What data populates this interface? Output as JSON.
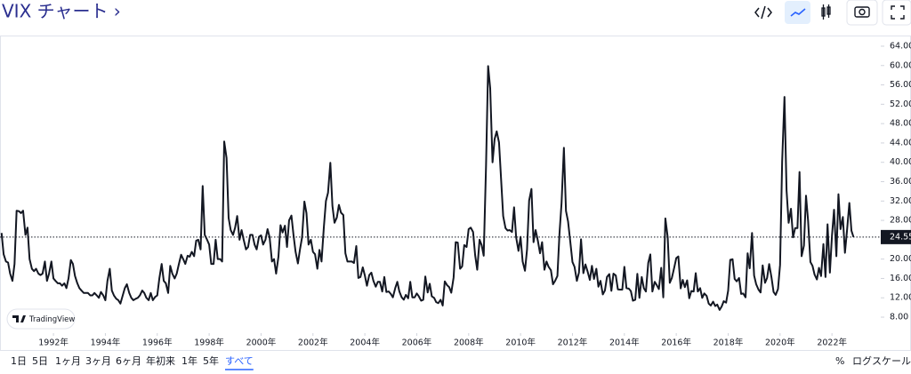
{
  "toolbar": {
    "title": "VIX チャート ›"
  },
  "watermark": "TradingView",
  "range_buttons": [
    "1日",
    "5日",
    "1ヶ月",
    "3ヶ月",
    "6ヶ月",
    "年初来",
    "1年",
    "5年",
    "すべて"
  ],
  "active_range": 8,
  "scale_buttons": [
    "%",
    "ログスケール"
  ],
  "chart_data": {
    "type": "line",
    "xlim": [
      1989.94,
      2023.88
    ],
    "ylim": [
      4.7,
      66.2
    ],
    "xticks": [
      {
        "value": 1992,
        "label": "1992年"
      },
      {
        "value": 1994,
        "label": "1994年"
      },
      {
        "value": 1996,
        "label": "1996年"
      },
      {
        "value": 1998,
        "label": "1998年"
      },
      {
        "value": 2000,
        "label": "2000年"
      },
      {
        "value": 2002,
        "label": "2002年"
      },
      {
        "value": 2004,
        "label": "2004年"
      },
      {
        "value": 2006,
        "label": "2006年"
      },
      {
        "value": 2008,
        "label": "2008年"
      },
      {
        "value": 2010,
        "label": "2010年"
      },
      {
        "value": 2012,
        "label": "2012年"
      },
      {
        "value": 2014,
        "label": "2014年"
      },
      {
        "value": 2016,
        "label": "2016年"
      },
      {
        "value": 2018,
        "label": "2018年"
      },
      {
        "value": 2020,
        "label": "2020年"
      },
      {
        "value": 2022,
        "label": "2022年"
      }
    ],
    "yticks": [
      {
        "value": 8,
        "label": "8.00"
      },
      {
        "value": 12,
        "label": "12.00"
      },
      {
        "value": 16,
        "label": "16.00"
      },
      {
        "value": 20,
        "label": "20.00"
      },
      {
        "value": 24,
        "label": "24.00"
      },
      {
        "value": 28,
        "label": "28.00"
      },
      {
        "value": 32,
        "label": "32.00"
      },
      {
        "value": 36,
        "label": "36.00"
      },
      {
        "value": 40,
        "label": "40.00"
      },
      {
        "value": 44,
        "label": "44.00"
      },
      {
        "value": 48,
        "label": "48.00"
      },
      {
        "value": 52,
        "label": "52.00"
      },
      {
        "value": 56,
        "label": "56.00"
      },
      {
        "value": 60,
        "label": "60.00"
      },
      {
        "value": 64,
        "label": "64.00"
      }
    ],
    "x": [
      1990,
      1990.08,
      1990.17,
      1990.25,
      1990.33,
      1990.42,
      1990.5,
      1990.58,
      1990.67,
      1990.75,
      1990.83,
      1990.92,
      1991,
      1991.08,
      1991.17,
      1991.25,
      1991.33,
      1991.42,
      1991.5,
      1991.58,
      1991.67,
      1991.75,
      1991.83,
      1991.92,
      1992,
      1992.08,
      1992.17,
      1992.25,
      1992.33,
      1992.42,
      1992.5,
      1992.58,
      1992.67,
      1992.75,
      1992.83,
      1992.92,
      1993,
      1993.08,
      1993.17,
      1993.25,
      1993.33,
      1993.42,
      1993.5,
      1993.58,
      1993.67,
      1993.75,
      1993.83,
      1993.92,
      1994,
      1994.08,
      1994.17,
      1994.25,
      1994.33,
      1994.42,
      1994.5,
      1994.58,
      1994.67,
      1994.75,
      1994.83,
      1994.92,
      1995,
      1995.08,
      1995.17,
      1995.25,
      1995.33,
      1995.42,
      1995.5,
      1995.58,
      1995.67,
      1995.75,
      1995.83,
      1995.92,
      1996,
      1996.08,
      1996.17,
      1996.25,
      1996.33,
      1996.42,
      1996.5,
      1996.58,
      1996.67,
      1996.75,
      1996.83,
      1996.92,
      1997,
      1997.08,
      1997.17,
      1997.25,
      1997.33,
      1997.42,
      1997.5,
      1997.58,
      1997.67,
      1997.75,
      1997.83,
      1997.92,
      1998,
      1998.08,
      1998.17,
      1998.25,
      1998.33,
      1998.42,
      1998.5,
      1998.58,
      1998.67,
      1998.75,
      1998.83,
      1998.92,
      1999,
      1999.08,
      1999.17,
      1999.25,
      1999.33,
      1999.42,
      1999.5,
      1999.58,
      1999.67,
      1999.75,
      1999.83,
      1999.92,
      2000,
      2000.08,
      2000.17,
      2000.25,
      2000.33,
      2000.42,
      2000.5,
      2000.58,
      2000.67,
      2000.75,
      2000.83,
      2000.92,
      2001,
      2001.08,
      2001.17,
      2001.25,
      2001.33,
      2001.42,
      2001.5,
      2001.58,
      2001.67,
      2001.75,
      2001.83,
      2001.92,
      2002,
      2002.08,
      2002.17,
      2002.25,
      2002.33,
      2002.42,
      2002.5,
      2002.58,
      2002.67,
      2002.75,
      2002.83,
      2002.92,
      2003,
      2003.08,
      2003.17,
      2003.25,
      2003.33,
      2003.42,
      2003.5,
      2003.58,
      2003.67,
      2003.75,
      2003.83,
      2003.92,
      2004,
      2004.08,
      2004.17,
      2004.25,
      2004.33,
      2004.42,
      2004.5,
      2004.58,
      2004.67,
      2004.75,
      2004.83,
      2004.92,
      2005,
      2005.08,
      2005.17,
      2005.25,
      2005.33,
      2005.42,
      2005.5,
      2005.58,
      2005.67,
      2005.75,
      2005.83,
      2005.92,
      2006,
      2006.08,
      2006.17,
      2006.25,
      2006.33,
      2006.42,
      2006.5,
      2006.58,
      2006.67,
      2006.75,
      2006.83,
      2006.92,
      2007,
      2007.08,
      2007.17,
      2007.25,
      2007.33,
      2007.42,
      2007.5,
      2007.58,
      2007.67,
      2007.75,
      2007.83,
      2007.92,
      2008,
      2008.08,
      2008.17,
      2008.25,
      2008.33,
      2008.42,
      2008.5,
      2008.58,
      2008.67,
      2008.75,
      2008.83,
      2008.92,
      2009,
      2009.08,
      2009.17,
      2009.25,
      2009.33,
      2009.42,
      2009.5,
      2009.58,
      2009.67,
      2009.75,
      2009.83,
      2009.92,
      2010,
      2010.08,
      2010.17,
      2010.25,
      2010.33,
      2010.42,
      2010.5,
      2010.58,
      2010.67,
      2010.75,
      2010.83,
      2010.92,
      2011,
      2011.08,
      2011.17,
      2011.25,
      2011.33,
      2011.42,
      2011.5,
      2011.58,
      2011.67,
      2011.75,
      2011.83,
      2011.92,
      2012,
      2012.08,
      2012.17,
      2012.25,
      2012.33,
      2012.42,
      2012.5,
      2012.58,
      2012.67,
      2012.75,
      2012.83,
      2012.92,
      2013,
      2013.08,
      2013.17,
      2013.25,
      2013.33,
      2013.42,
      2013.5,
      2013.58,
      2013.67,
      2013.75,
      2013.83,
      2013.92,
      2014,
      2014.08,
      2014.17,
      2014.25,
      2014.33,
      2014.42,
      2014.5,
      2014.58,
      2014.67,
      2014.75,
      2014.83,
      2014.92,
      2015,
      2015.08,
      2015.17,
      2015.25,
      2015.33,
      2015.42,
      2015.5,
      2015.58,
      2015.67,
      2015.75,
      2015.83,
      2015.92,
      2016,
      2016.08,
      2016.17,
      2016.25,
      2016.33,
      2016.42,
      2016.5,
      2016.58,
      2016.67,
      2016.75,
      2016.83,
      2016.92,
      2017,
      2017.08,
      2017.17,
      2017.25,
      2017.33,
      2017.42,
      2017.5,
      2017.58,
      2017.67,
      2017.75,
      2017.83,
      2017.92,
      2018,
      2018.08,
      2018.17,
      2018.25,
      2018.33,
      2018.42,
      2018.5,
      2018.58,
      2018.67,
      2018.75,
      2018.83,
      2018.92,
      2019,
      2019.08,
      2019.17,
      2019.25,
      2019.33,
      2019.42,
      2019.5,
      2019.58,
      2019.67,
      2019.75,
      2019.83,
      2019.92,
      2020,
      2020.08,
      2020.17,
      2020.25,
      2020.33,
      2020.42,
      2020.5,
      2020.58,
      2020.67,
      2020.75,
      2020.83,
      2020.92,
      2021,
      2021.08,
      2021.17,
      2021.25,
      2021.33,
      2021.42,
      2021.5,
      2021.58,
      2021.67,
      2021.75,
      2021.83,
      2021.92,
      2022,
      2022.08,
      2022.17,
      2022.25,
      2022.33,
      2022.42,
      2022.5,
      2022.58,
      2022.67,
      2022.75,
      2022.83
    ],
    "series": [
      {
        "color": "#131722",
        "values": [
          25.4,
          21,
          19.5,
          19.3,
          17,
          15.5,
          19,
          30,
          29.9,
          29.5,
          30,
          25,
          26.5,
          20,
          18,
          17.5,
          18,
          17,
          16.7,
          17,
          19.5,
          15.5,
          17,
          19.5,
          16,
          15.5,
          15,
          15,
          14.5,
          15,
          14,
          16,
          19.8,
          19,
          16.5,
          15,
          14,
          13.5,
          13,
          13,
          13,
          12.5,
          12.5,
          13,
          12.5,
          12,
          13.2,
          12.5,
          11.5,
          15.5,
          18,
          13.5,
          12.5,
          11.8,
          11.5,
          10.8,
          12.5,
          14,
          14.8,
          13,
          12,
          11.5,
          11.8,
          12,
          12.5,
          13.5,
          13,
          12,
          11.5,
          13,
          11.5,
          12.2,
          12.5,
          16,
          19,
          15.5,
          15,
          13,
          18.6,
          17,
          16,
          17,
          18.9,
          20.9,
          20,
          19,
          20.7,
          20.5,
          21.5,
          20.6,
          23.8,
          24,
          22,
          35.1,
          25,
          24,
          23,
          19,
          19,
          24,
          20,
          20,
          19.5,
          44.3,
          40.9,
          28.5,
          26,
          25,
          26.5,
          28.9,
          24,
          26,
          24,
          22,
          22.5,
          25,
          25,
          23,
          22,
          24.6,
          24.9,
          23,
          24,
          26.2,
          24.5,
          19.5,
          20,
          17,
          20.5,
          27,
          25.5,
          26.9,
          22.5,
          28,
          29,
          25,
          21.5,
          19.1,
          22,
          24.5,
          31.9,
          29.5,
          23,
          24,
          21.5,
          21,
          18,
          21.9,
          19.5,
          26.6,
          32,
          33.7,
          39.9,
          31,
          27.5,
          28.6,
          31.2,
          29.6,
          29.1,
          21.2,
          19.5,
          19.5,
          19.5,
          19.2,
          22.7,
          16.1,
          16.3,
          18.3,
          16.6,
          14.5,
          16.7,
          17.2,
          15.5,
          14.3,
          15.3,
          15.3,
          13.3,
          16.3,
          13.2,
          13.3,
          12.8,
          12.1,
          14,
          15.3,
          13.3,
          12.1,
          11.6,
          12.6,
          11.9,
          15.3,
          12.1,
          12.1,
          12.9,
          12.3,
          11.4,
          11.6,
          16.4,
          13.1,
          14.9,
          12.3,
          11.98,
          11.1,
          10.9,
          11.6,
          10.4,
          15.4,
          14.6,
          14.2,
          13.05,
          16.2,
          23.5,
          23.4,
          18,
          18.5,
          22.9,
          22.5,
          26.2,
          26.5,
          25.6,
          20.8,
          17.8,
          24,
          22.9,
          20.7,
          39.4,
          59.9,
          55.3,
          40,
          44.8,
          46.4,
          44.1,
          36.5,
          28.9,
          26.4,
          25.9,
          26,
          25.6,
          30.7,
          24.5,
          21.7,
          24.6,
          19.5,
          17.6,
          22,
          32.1,
          34.5,
          23.5,
          26,
          23.7,
          21.2,
          23.5,
          17.8,
          19.5,
          18.4,
          17.7,
          14.8,
          15.5,
          16.5,
          25.3,
          31.6,
          43,
          29.96,
          27.8,
          23.4,
          19.4,
          18.4,
          15.5,
          17.2,
          24.1,
          17.1,
          18.9,
          17.5,
          15.7,
          18.6,
          15.9,
          18,
          14.3,
          15.5,
          12.7,
          13.5,
          16.3,
          16.9,
          13.45,
          17,
          16.6,
          13.75,
          13.7,
          13.7,
          18.4,
          14,
          13.9,
          13.4,
          11.4,
          11.6,
          16.95,
          12,
          16.3,
          14,
          13.3,
          19.2,
          20.97,
          13.3,
          15.3,
          14.6,
          13.8,
          18.2,
          12.1,
          28.4,
          24.5,
          15.1,
          16.1,
          18.2,
          20.2,
          20.55,
          13.95,
          15.7,
          14.2,
          15.6,
          11.9,
          13.4,
          13.3,
          17.1,
          13.3,
          14,
          11.99,
          12.9,
          12.4,
          10.8,
          10.4,
          11.2,
          10.3,
          10.6,
          9.5,
          10.2,
          11.3,
          11,
          13.5,
          19.85,
          19.97,
          15.9,
          15.4,
          16.1,
          12.8,
          12.9,
          12.1,
          21.2,
          18.1,
          25.4,
          16.6,
          14.8,
          13.7,
          13.1,
          18.7,
          15.1,
          16.1,
          18.98,
          16.2,
          13.2,
          12.6,
          13.8,
          18.8,
          40.1,
          53.5,
          34.2,
          27.5,
          30.4,
          24.5,
          26.4,
          26.4,
          38,
          20.6,
          22.8,
          33.1,
          27.9,
          19.4,
          18.6,
          16.8,
          15.8,
          18.2,
          16.5,
          23.1,
          16.3,
          27.2,
          17.2,
          24.8,
          30.2,
          20.6,
          33.4,
          26.2,
          28.7,
          21.3,
          25.9,
          31.6,
          25.9,
          24.55
        ]
      }
    ]
  }
}
